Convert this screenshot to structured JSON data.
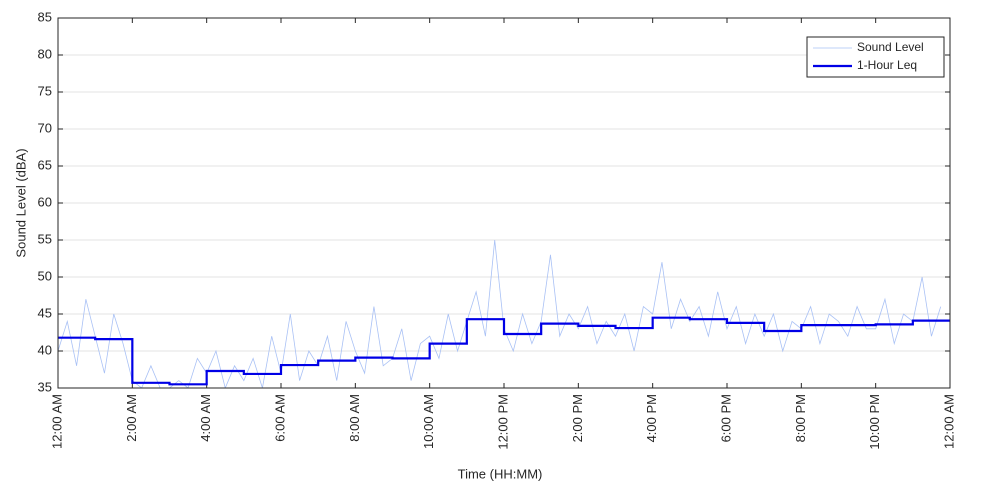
{
  "chart_data": {
    "type": "line",
    "xlabel": "Time (HH:MM)",
    "ylabel": "Sound Level (dBA)",
    "xlim": [
      0,
      24
    ],
    "ylim": [
      35,
      85
    ],
    "xticks": [
      {
        "value": 0,
        "label": "12:00 AM"
      },
      {
        "value": 2,
        "label": "2:00 AM"
      },
      {
        "value": 4,
        "label": "4:00 AM"
      },
      {
        "value": 6,
        "label": "6:00 AM"
      },
      {
        "value": 8,
        "label": "8:00 AM"
      },
      {
        "value": 10,
        "label": "10:00 AM"
      },
      {
        "value": 12,
        "label": "12:00 PM"
      },
      {
        "value": 14,
        "label": "2:00 PM"
      },
      {
        "value": 16,
        "label": "4:00 PM"
      },
      {
        "value": 18,
        "label": "6:00 PM"
      },
      {
        "value": 20,
        "label": "8:00 PM"
      },
      {
        "value": 22,
        "label": "10:00 PM"
      },
      {
        "value": 24,
        "label": "12:00 AM"
      }
    ],
    "yticks": [
      35,
      40,
      45,
      50,
      55,
      60,
      65,
      70,
      75,
      80,
      85
    ],
    "grid": true,
    "legend": "upper right",
    "series": [
      {
        "name": "Sound Level",
        "color": "#a9c1f5",
        "width": 0.8,
        "x": [
          0,
          0.25,
          0.5,
          0.75,
          1,
          1.25,
          1.5,
          1.75,
          2,
          2.25,
          2.5,
          2.75,
          3,
          3.25,
          3.5,
          3.75,
          4,
          4.25,
          4.5,
          4.75,
          5,
          5.25,
          5.5,
          5.75,
          6,
          6.25,
          6.5,
          6.75,
          7,
          7.25,
          7.5,
          7.75,
          8,
          8.25,
          8.5,
          8.75,
          9,
          9.25,
          9.5,
          9.75,
          10,
          10.25,
          10.5,
          10.75,
          11,
          11.25,
          11.5,
          11.75,
          12,
          12.25,
          12.5,
          12.75,
          13,
          13.25,
          13.5,
          13.75,
          14,
          14.25,
          14.5,
          14.75,
          15,
          15.25,
          15.5,
          15.75,
          16,
          16.25,
          16.5,
          16.75,
          17,
          17.25,
          17.5,
          17.75,
          18,
          18.25,
          18.5,
          18.75,
          19,
          19.25,
          19.5,
          19.75,
          20,
          20.25,
          20.5,
          20.75,
          21,
          21.25,
          21.5,
          21.75,
          22,
          22.25,
          22.5,
          22.75,
          23,
          23.25,
          23.5,
          23.75
        ],
        "values": [
          40,
          44,
          38,
          47,
          42,
          37,
          45,
          41,
          36,
          35,
          38,
          35,
          35,
          36,
          35,
          39,
          37,
          40,
          35,
          38,
          36,
          39,
          35,
          42,
          37,
          45,
          36,
          40,
          38,
          42,
          36,
          44,
          40,
          37,
          46,
          38,
          39,
          43,
          36,
          41,
          42,
          39,
          45,
          40,
          44,
          48,
          42,
          55,
          43,
          40,
          45,
          41,
          44,
          53,
          42,
          45,
          43,
          46,
          41,
          44,
          42,
          45,
          40,
          46,
          45,
          52,
          43,
          47,
          44,
          46,
          42,
          48,
          43,
          46,
          41,
          45,
          42,
          45,
          40,
          44,
          43,
          46,
          41,
          45,
          44,
          42,
          46,
          43,
          43,
          47,
          41,
          45,
          44,
          50,
          42,
          46
        ]
      },
      {
        "name": "1-Hour Leq",
        "color": "#0000e6",
        "width": 2.2,
        "step": "post",
        "x": [
          0,
          1,
          2,
          3,
          4,
          5,
          6,
          7,
          8,
          9,
          10,
          11,
          12,
          13,
          14,
          15,
          16,
          17,
          18,
          19,
          20,
          21,
          22,
          23
        ],
        "values": [
          41.8,
          41.6,
          35.7,
          35.5,
          37.3,
          36.9,
          38.1,
          38.7,
          39.1,
          39.0,
          41.0,
          44.3,
          42.3,
          43.7,
          43.4,
          43.1,
          44.5,
          44.3,
          43.8,
          42.7,
          43.5,
          43.5,
          43.6,
          44.1
        ]
      }
    ]
  }
}
